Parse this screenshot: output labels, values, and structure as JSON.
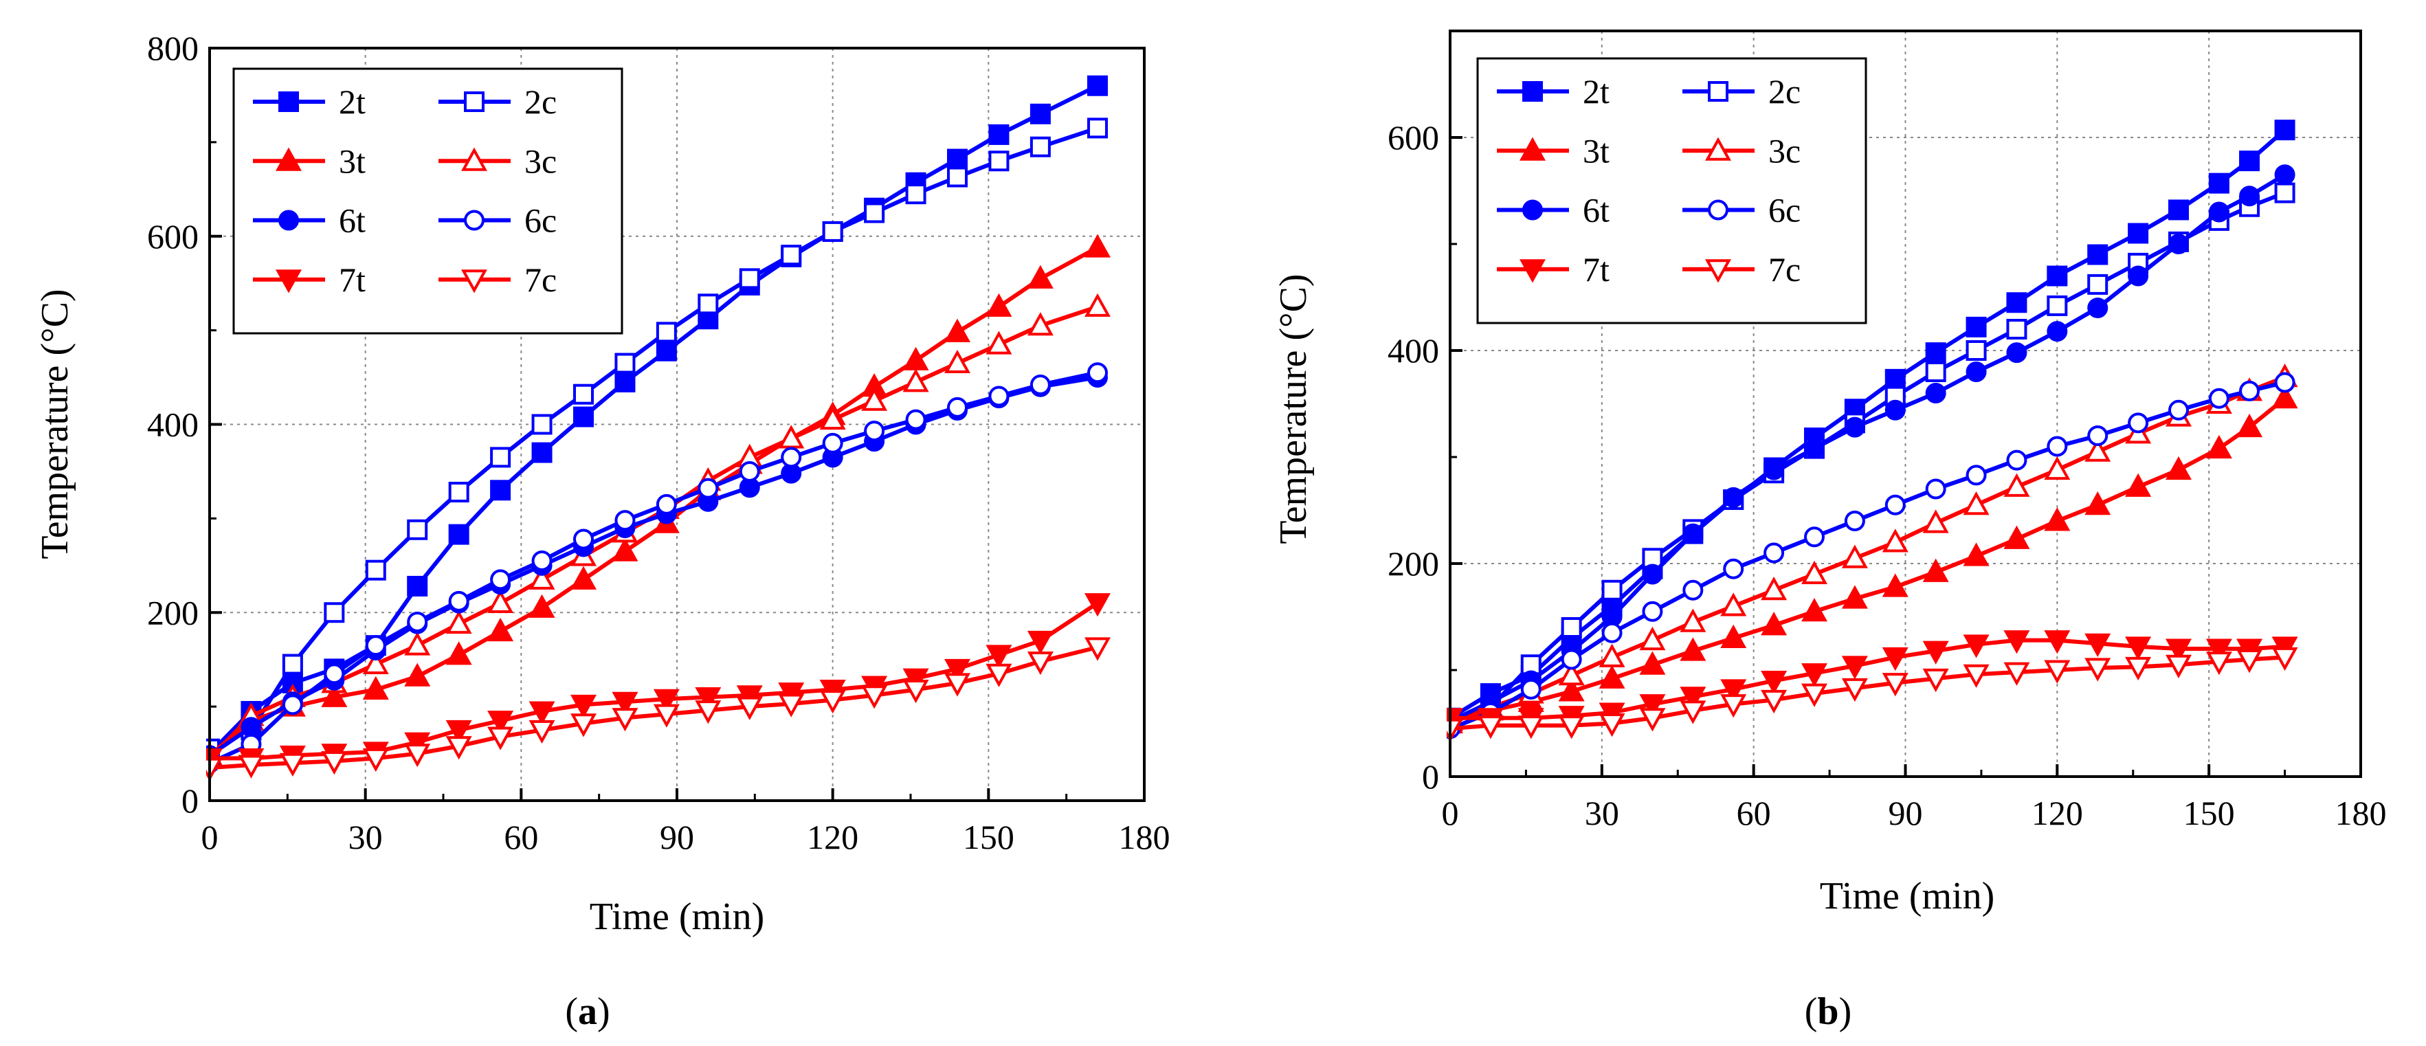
{
  "chart_data": [
    {
      "type": "line",
      "panel_label": "(a)",
      "panel_letter": "a",
      "xlabel": "Time (min)",
      "ylabel": "Temperature (°C)",
      "xlim": [
        0,
        180
      ],
      "ylim": [
        0,
        800
      ],
      "xticks": [
        0,
        30,
        60,
        90,
        120,
        150,
        180
      ],
      "yticks": [
        0,
        200,
        400,
        600,
        800
      ],
      "grid": true,
      "legend": "top-left",
      "x": [
        0,
        8,
        16,
        24,
        32,
        40,
        48,
        56,
        64,
        72,
        80,
        88,
        96,
        104,
        112,
        120,
        128,
        136,
        144,
        152,
        160,
        171
      ],
      "series": [
        {
          "name": "2t",
          "color": "#0000ff",
          "marker": "square",
          "filled": true,
          "values": [
            50,
            95,
            125,
            140,
            165,
            228,
            283,
            330,
            370,
            408,
            445,
            478,
            512,
            548,
            578,
            605,
            630,
            657,
            682,
            708,
            730,
            760
          ]
        },
        {
          "name": "2c",
          "color": "#0000ff",
          "marker": "square",
          "filled": false,
          "values": [
            55,
            75,
            145,
            200,
            245,
            288,
            328,
            365,
            400,
            432,
            465,
            498,
            528,
            555,
            580,
            605,
            625,
            645,
            663,
            680,
            695,
            715
          ]
        },
        {
          "name": "3t",
          "color": "#ff0000",
          "marker": "triangle-up",
          "filled": true,
          "values": [
            48,
            85,
            100,
            110,
            118,
            132,
            155,
            180,
            205,
            235,
            265,
            295,
            330,
            358,
            385,
            410,
            440,
            468,
            498,
            525,
            555,
            588
          ]
        },
        {
          "name": "3c",
          "color": "#ff0000",
          "marker": "triangle-up",
          "filled": false,
          "values": [
            45,
            90,
            110,
            125,
            145,
            165,
            188,
            210,
            235,
            260,
            285,
            310,
            340,
            365,
            385,
            405,
            425,
            445,
            465,
            485,
            505,
            525
          ]
        },
        {
          "name": "6t",
          "color": "#0000ff",
          "marker": "circle",
          "filled": true,
          "values": [
            48,
            78,
            105,
            128,
            160,
            188,
            210,
            230,
            250,
            270,
            290,
            305,
            318,
            333,
            348,
            365,
            382,
            400,
            415,
            428,
            440,
            450
          ]
        },
        {
          "name": "6c",
          "color": "#0000ff",
          "marker": "circle",
          "filled": false,
          "values": [
            40,
            60,
            102,
            135,
            165,
            190,
            212,
            235,
            255,
            278,
            298,
            315,
            332,
            350,
            365,
            380,
            393,
            405,
            418,
            430,
            442,
            455
          ]
        },
        {
          "name": "7t",
          "color": "#ff0000",
          "marker": "triangle-down",
          "filled": true,
          "values": [
            45,
            45,
            48,
            50,
            52,
            62,
            75,
            85,
            95,
            102,
            105,
            108,
            110,
            112,
            115,
            118,
            122,
            130,
            140,
            155,
            170,
            210
          ]
        },
        {
          "name": "7c",
          "color": "#ff0000",
          "marker": "triangle-down",
          "filled": false,
          "values": [
            35,
            38,
            40,
            42,
            45,
            50,
            58,
            68,
            75,
            82,
            88,
            92,
            96,
            100,
            103,
            107,
            112,
            118,
            125,
            135,
            148,
            163
          ]
        }
      ]
    },
    {
      "type": "line",
      "panel_label": "(b)",
      "panel_letter": "b",
      "xlabel": "Time (min)",
      "ylabel": "Temperature (°C)",
      "xlim": [
        0,
        180
      ],
      "ylim": [
        0,
        700
      ],
      "xticks": [
        0,
        30,
        60,
        90,
        120,
        150,
        180
      ],
      "yticks": [
        0,
        200,
        400,
        600
      ],
      "grid": true,
      "legend": "top-left",
      "x": [
        0,
        8,
        16,
        24,
        32,
        40,
        48,
        56,
        64,
        72,
        80,
        88,
        96,
        104,
        112,
        120,
        128,
        136,
        144,
        152,
        158,
        165
      ],
      "series": [
        {
          "name": "2t",
          "color": "#0000ff",
          "marker": "square",
          "filled": true,
          "values": [
            55,
            78,
            95,
            130,
            160,
            195,
            228,
            260,
            290,
            318,
            345,
            373,
            398,
            422,
            445,
            470,
            490,
            510,
            532,
            557,
            578,
            607
          ]
        },
        {
          "name": "2c",
          "color": "#0000ff",
          "marker": "square",
          "filled": false,
          "values": [
            50,
            65,
            105,
            140,
            175,
            205,
            232,
            260,
            285,
            308,
            332,
            357,
            380,
            400,
            420,
            442,
            462,
            482,
            502,
            522,
            535,
            548
          ]
        },
        {
          "name": "3t",
          "color": "#ff0000",
          "marker": "triangle-up",
          "filled": true,
          "values": [
            52,
            62,
            70,
            80,
            92,
            105,
            118,
            130,
            142,
            155,
            167,
            178,
            192,
            207,
            223,
            240,
            255,
            272,
            288,
            308,
            328,
            355
          ]
        },
        {
          "name": "3c",
          "color": "#ff0000",
          "marker": "triangle-up",
          "filled": false,
          "values": [
            50,
            65,
            78,
            95,
            112,
            128,
            145,
            160,
            175,
            190,
            205,
            220,
            238,
            255,
            272,
            288,
            305,
            322,
            338,
            350,
            362,
            375
          ]
        },
        {
          "name": "6t",
          "color": "#0000ff",
          "marker": "circle",
          "filled": true,
          "values": [
            52,
            70,
            90,
            118,
            150,
            190,
            228,
            262,
            288,
            308,
            328,
            344,
            360,
            380,
            398,
            418,
            440,
            470,
            500,
            530,
            545,
            565
          ]
        },
        {
          "name": "6c",
          "color": "#0000ff",
          "marker": "circle",
          "filled": false,
          "values": [
            45,
            60,
            82,
            110,
            135,
            155,
            175,
            195,
            210,
            225,
            240,
            255,
            270,
            283,
            297,
            310,
            320,
            332,
            344,
            355,
            362,
            370
          ]
        },
        {
          "name": "7t",
          "color": "#ff0000",
          "marker": "triangle-down",
          "filled": true,
          "values": [
            55,
            55,
            55,
            57,
            60,
            68,
            75,
            82,
            90,
            97,
            104,
            112,
            118,
            124,
            128,
            128,
            125,
            122,
            120,
            120,
            120,
            122
          ]
        },
        {
          "name": "7c",
          "color": "#ff0000",
          "marker": "triangle-down",
          "filled": false,
          "values": [
            45,
            48,
            48,
            48,
            50,
            55,
            62,
            68,
            72,
            78,
            83,
            88,
            92,
            96,
            98,
            100,
            102,
            103,
            105,
            108,
            110,
            112
          ]
        }
      ]
    }
  ]
}
